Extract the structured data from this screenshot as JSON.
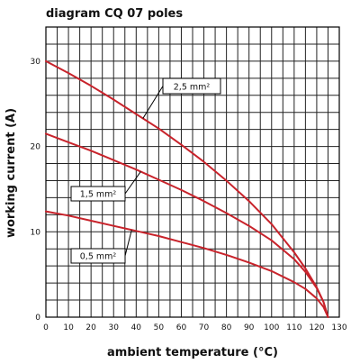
{
  "chart_data": {
    "type": "line",
    "title": "diagram CQ 07 poles",
    "xlabel": "ambient temperature (°C)",
    "ylabel": "working current (A)",
    "xlim": [
      0,
      130
    ],
    "ylim": [
      0,
      34
    ],
    "x_ticks": [
      0,
      10,
      20,
      30,
      40,
      50,
      60,
      70,
      80,
      90,
      100,
      110,
      120,
      130
    ],
    "y_ticks": [
      0,
      10,
      20,
      30
    ],
    "grid": true,
    "colors": {
      "curve": "#c8232b",
      "grid": "#222222",
      "axis": "#000000"
    },
    "series": [
      {
        "name": "2,5 mm²",
        "x": [
          0,
          10,
          20,
          30,
          40,
          50,
          60,
          70,
          80,
          90,
          100,
          110,
          115,
          120,
          123,
          125
        ],
        "y": [
          30,
          28.6,
          27.1,
          25.5,
          23.8,
          22.1,
          20.2,
          18.2,
          16.0,
          13.6,
          10.9,
          7.6,
          5.7,
          3.5,
          1.8,
          0
        ]
      },
      {
        "name": "1,5 mm²",
        "x": [
          0,
          10,
          20,
          30,
          40,
          50,
          60,
          70,
          80,
          90,
          100,
          110,
          115,
          120,
          123,
          125
        ],
        "y": [
          21.5,
          20.5,
          19.5,
          18.4,
          17.3,
          16.1,
          14.9,
          13.6,
          12.2,
          10.7,
          9.0,
          6.8,
          5.3,
          3.4,
          1.8,
          0
        ]
      },
      {
        "name": "0,5 mm²",
        "x": [
          0,
          10,
          20,
          30,
          40,
          50,
          60,
          70,
          80,
          90,
          100,
          110,
          115,
          120,
          123,
          125
        ],
        "y": [
          12.4,
          11.9,
          11.3,
          10.7,
          10.1,
          9.5,
          8.8,
          8.1,
          7.3,
          6.4,
          5.4,
          4.1,
          3.3,
          2.2,
          1.2,
          0
        ]
      }
    ]
  }
}
